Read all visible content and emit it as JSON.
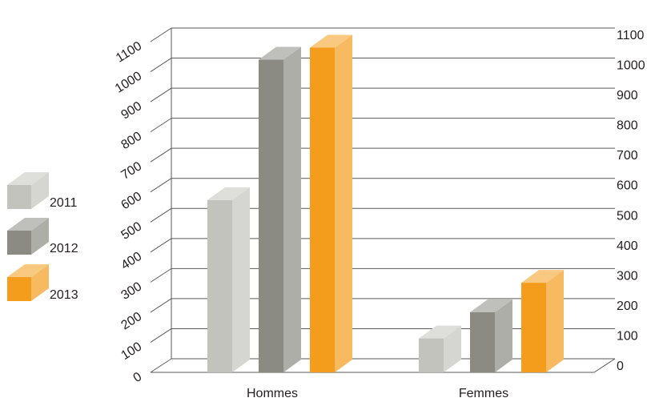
{
  "chart_data": {
    "type": "bar",
    "categories": [
      "Hommes",
      "Femmes"
    ],
    "series": [
      {
        "name": "2011",
        "values": [
          573,
          113
        ],
        "color": "#c3c3bd"
      },
      {
        "name": "2012",
        "values": [
          1040,
          200
        ],
        "color": "#8b8b83"
      },
      {
        "name": "2013",
        "values": [
          1080,
          298
        ],
        "color": "#f49c1c"
      }
    ],
    "yticks": [
      0,
      100,
      200,
      300,
      400,
      500,
      600,
      700,
      800,
      900,
      1000,
      1100
    ],
    "ylim": [
      0,
      1100
    ],
    "grid": true,
    "legend_position": "left",
    "style": "3d-bars"
  }
}
